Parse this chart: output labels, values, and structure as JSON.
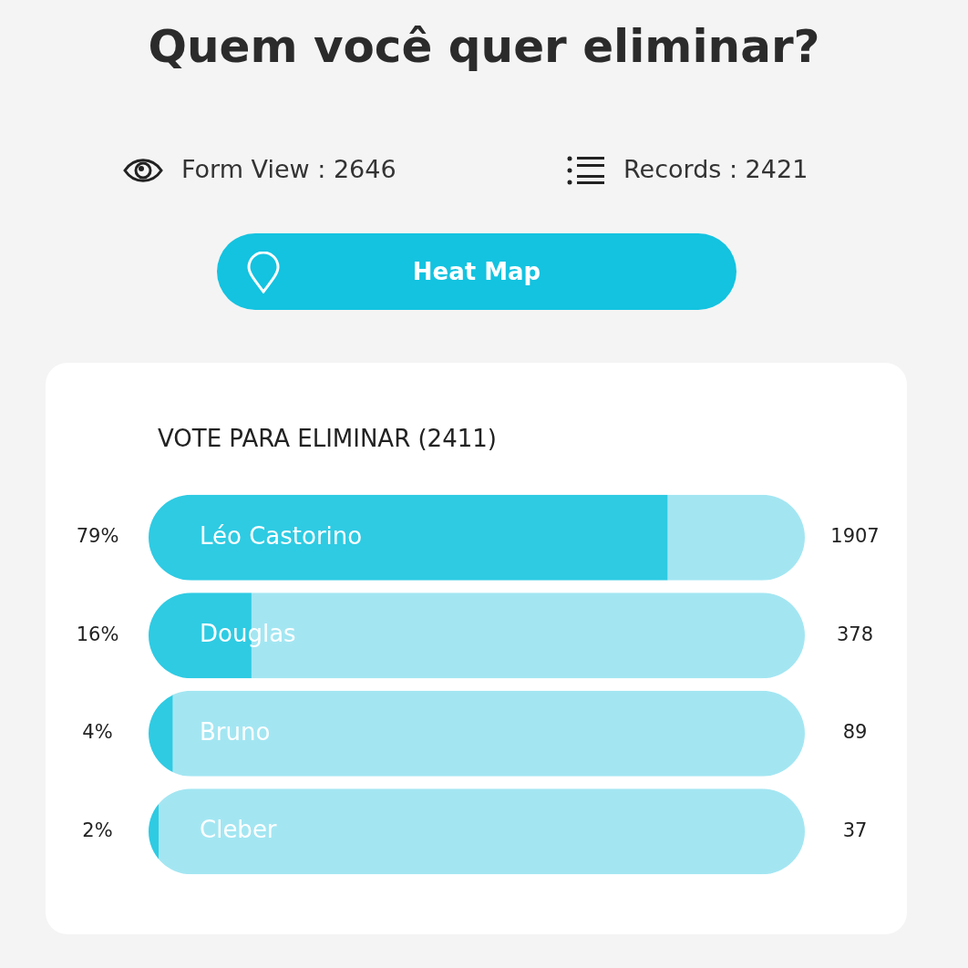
{
  "chart_data": {
    "type": "bar",
    "orientation": "horizontal",
    "stacked": true,
    "title": "Quem você quer eliminar?",
    "subtitle": "VOTE PARA ELIMINAR (2411)",
    "categories": [
      "Léo Castorino",
      "Douglas",
      "Bruno",
      "Cleber"
    ],
    "series": [
      {
        "color": "#2ecbe3",
        "values": [
          1907,
          378,
          89,
          37
        ],
        "value_labels": [
          "1907",
          "378",
          "89",
          "37"
        ]
      },
      {
        "color": "#a3e6f2",
        "values": [
          504,
          2033,
          2322,
          2374
        ]
      }
    ],
    "xlim": [
      0,
      2411
    ],
    "legend": false,
    "tick_labels": false,
    "annotations": [
      "Form View : 2646",
      "Records : 2421",
      "Heat Map",
      "79%",
      "16%",
      "4%",
      "2%"
    ]
  }
}
